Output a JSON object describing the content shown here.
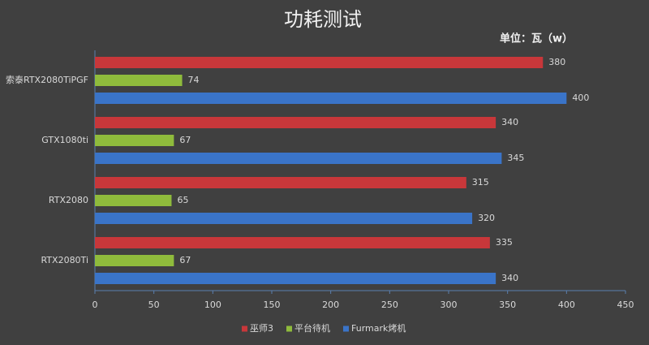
{
  "chart_data": {
    "type": "bar",
    "orientation": "horizontal",
    "title": "功耗测试",
    "subtitle": "单位：瓦（w）",
    "categories": [
      "索泰RTX2080TiPGF",
      "GTX1080ti",
      "RTX2080",
      "RTX2080Ti"
    ],
    "series": [
      {
        "name": "巫师3",
        "color": "#c8373a",
        "values": [
          380,
          340,
          315,
          335
        ]
      },
      {
        "name": "平台待机",
        "color": "#8fbb3c",
        "values": [
          74,
          67,
          65,
          67
        ]
      },
      {
        "name": "Furmark烤机",
        "color": "#3a74c8",
        "values": [
          400,
          345,
          320,
          340
        ]
      }
    ],
    "xlim": [
      0,
      450
    ],
    "xticks": [
      0,
      50,
      100,
      150,
      200,
      250,
      300,
      350,
      400,
      450
    ],
    "grid": false,
    "legend": "bottom"
  }
}
